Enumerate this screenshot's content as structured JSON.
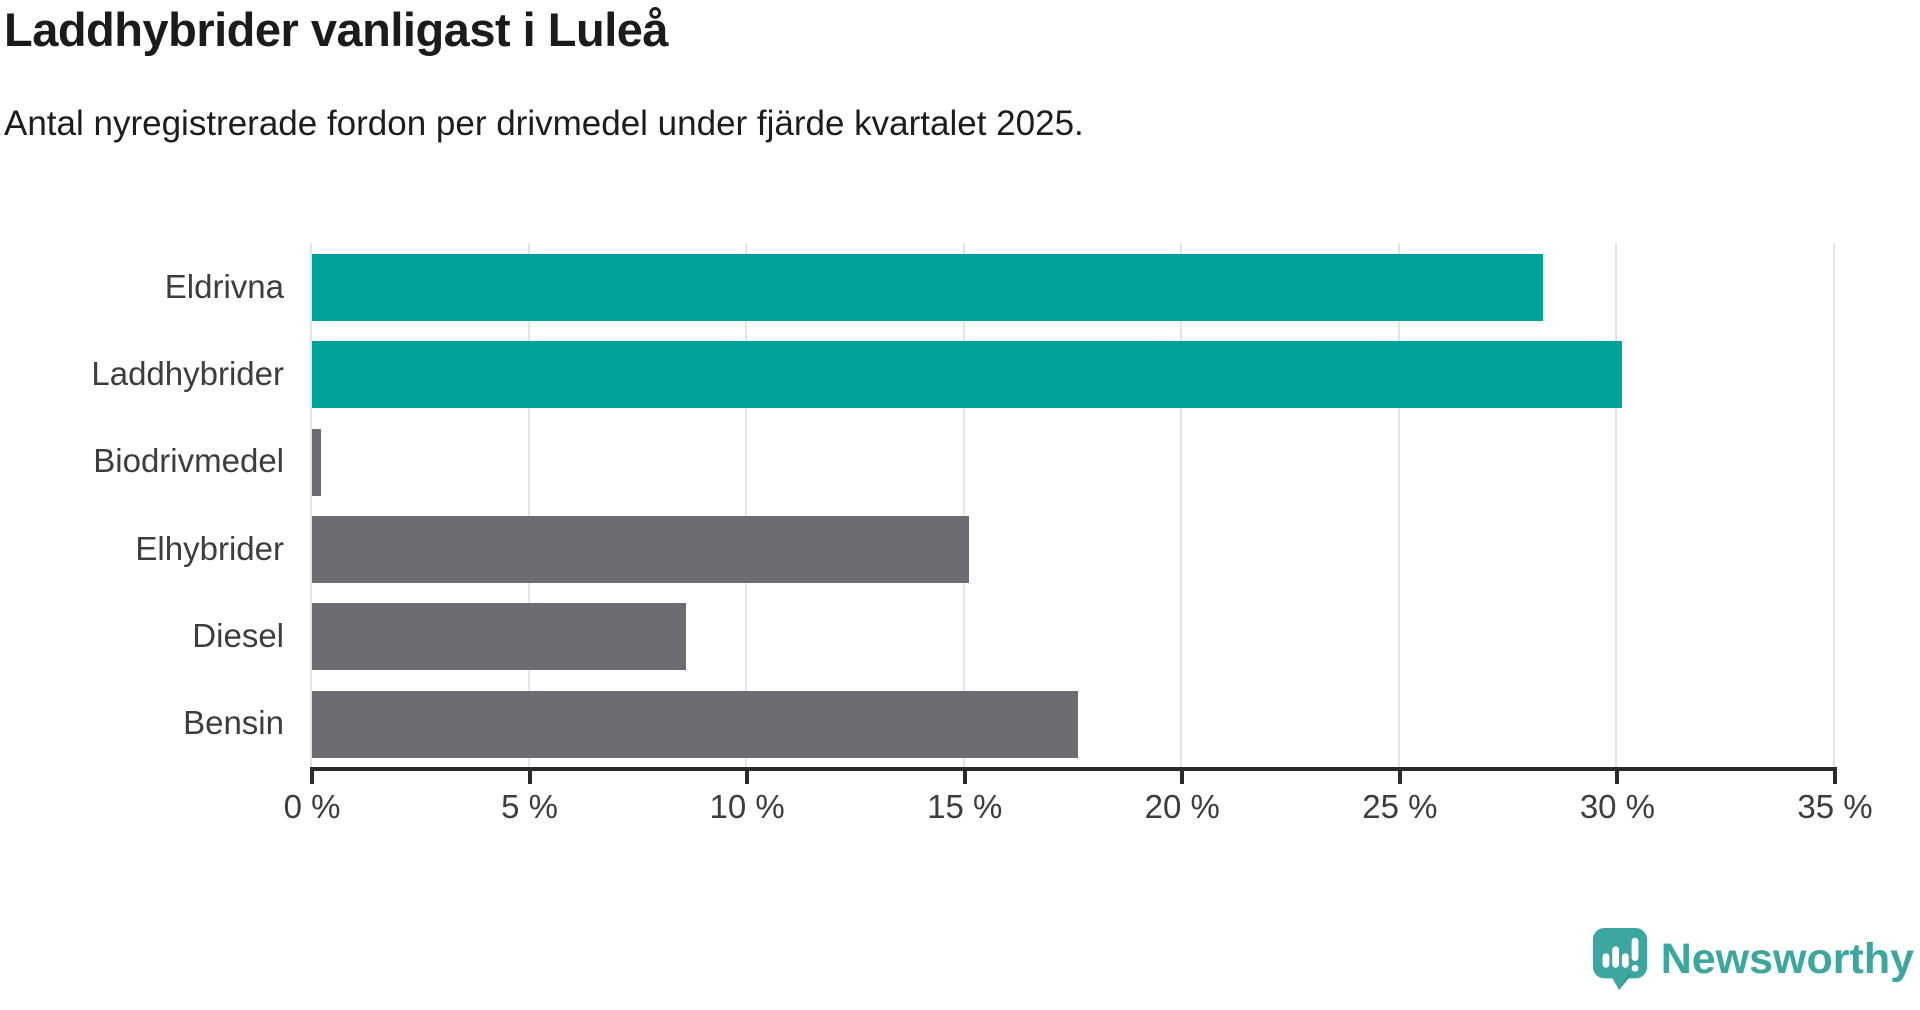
{
  "title": "Laddhybrider vanligast i Luleå",
  "subtitle": "Antal nyregistrerade fordon per drivmedel under fjärde kvartalet 2025.",
  "branding": {
    "logo_text": "Newsworthy",
    "logo_color": "#3ca79e"
  },
  "colors": {
    "highlight_bar": "#00a198",
    "default_bar": "#6c6d72",
    "gridline": "#e4e4e4",
    "axis": "#2a2a2a",
    "title_text": "#1b1b1b",
    "label_text": "#3d3d3d"
  },
  "chart_data": {
    "type": "bar",
    "orientation": "horizontal",
    "title": "Laddhybrider vanligast i Luleå",
    "subtitle": "Antal nyregistrerade fordon per drivmedel under fjärde kvartalet 2025.",
    "categories": [
      "Eldrivna",
      "Laddhybrider",
      "Biodrivmedel",
      "Elhybrider",
      "Diesel",
      "Bensin"
    ],
    "values": [
      28.3,
      30.1,
      0.2,
      15.1,
      8.6,
      17.6
    ],
    "unit": "%",
    "bar_colors": [
      "#00a198",
      "#00a198",
      "#6c6d72",
      "#6c6d72",
      "#6c6d72",
      "#6c6d72"
    ],
    "xlim": [
      0,
      35
    ],
    "xticks": [
      0,
      5,
      10,
      15,
      20,
      25,
      30,
      35
    ],
    "xtick_labels": [
      "0 %",
      "5 %",
      "10 %",
      "15 %",
      "20 %",
      "25 %",
      "30 %",
      "35 %"
    ],
    "grid": true,
    "legend": false,
    "xlabel": "",
    "ylabel": ""
  }
}
